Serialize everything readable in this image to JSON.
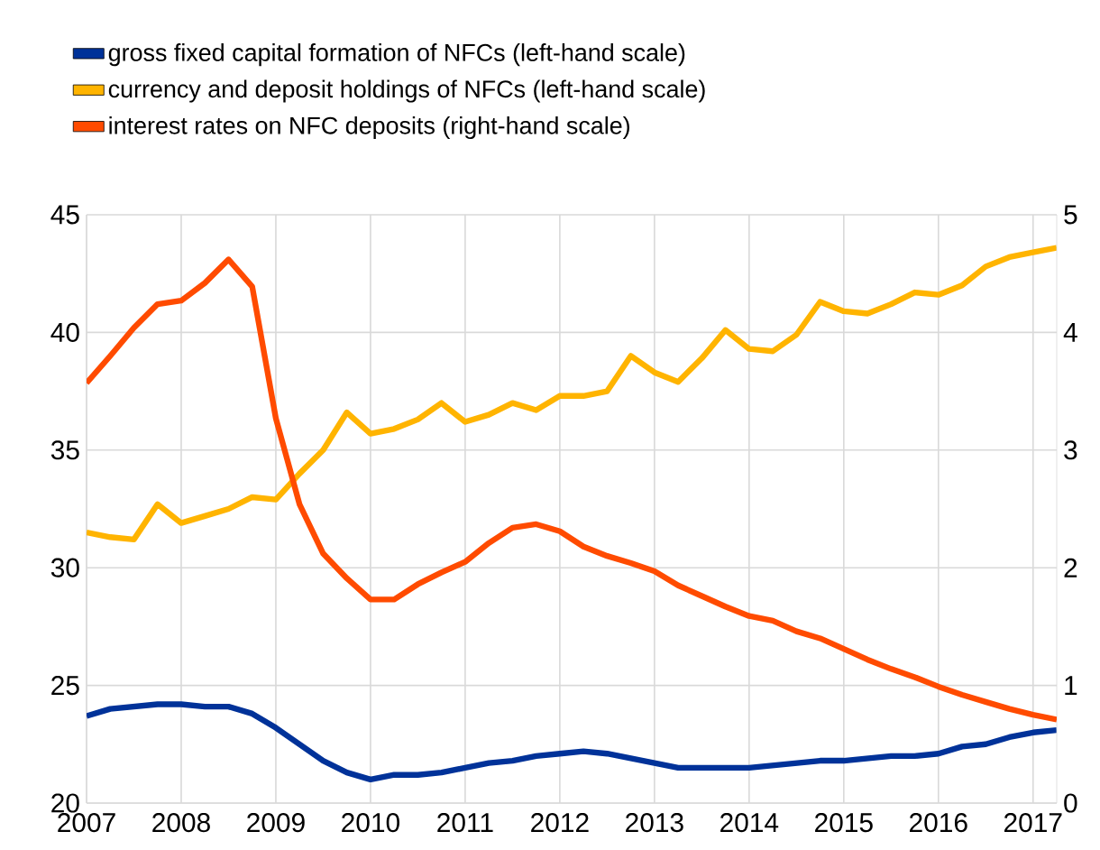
{
  "chart_data": {
    "type": "line",
    "x": [
      2007.0,
      2007.25,
      2007.5,
      2007.75,
      2008.0,
      2008.25,
      2008.5,
      2008.75,
      2009.0,
      2009.25,
      2009.5,
      2009.75,
      2010.0,
      2010.25,
      2010.5,
      2010.75,
      2011.0,
      2011.25,
      2011.5,
      2011.75,
      2012.0,
      2012.25,
      2012.5,
      2012.75,
      2013.0,
      2013.25,
      2013.5,
      2013.75,
      2014.0,
      2014.25,
      2014.5,
      2014.75,
      2015.0,
      2015.25,
      2015.5,
      2015.75,
      2016.0,
      2016.25,
      2016.5,
      2016.75,
      2017.0,
      2017.25
    ],
    "series": [
      {
        "name": "gross fixed capital formation of NFCs (left-hand scale)",
        "color": "#003299",
        "values": [
          23.7,
          24.0,
          24.1,
          24.2,
          24.2,
          24.1,
          24.1,
          23.8,
          23.2,
          22.5,
          21.8,
          21.3,
          21.0,
          21.2,
          21.2,
          21.3,
          21.5,
          21.7,
          21.8,
          22.0,
          22.1,
          22.2,
          22.1,
          21.9,
          21.7,
          21.5,
          21.5,
          21.5,
          21.5,
          21.6,
          21.7,
          21.8,
          21.8,
          21.9,
          22.0,
          22.0,
          22.1,
          22.4,
          22.5,
          22.8,
          23.0,
          23.1
        ]
      },
      {
        "name": "currency and deposit holdings of NFCs (left-hand scale)",
        "color": "#ffb400",
        "values": [
          31.5,
          31.3,
          31.2,
          32.7,
          31.9,
          32.2,
          32.5,
          33.0,
          32.9,
          34.0,
          35.0,
          36.6,
          35.7,
          35.9,
          36.3,
          37.0,
          36.2,
          36.5,
          37.0,
          36.7,
          37.3,
          37.3,
          37.5,
          39.0,
          38.3,
          37.9,
          38.9,
          40.1,
          39.3,
          39.2,
          39.9,
          41.3,
          40.9,
          40.8,
          41.2,
          41.7,
          41.6,
          42.0,
          42.8,
          43.2,
          43.4,
          43.6
        ]
      },
      {
        "name": "interest rates on NFC deposits (right-hand scale)",
        "color": "#ff4b00",
        "axis": "y2",
        "values": [
          3.57,
          3.8,
          4.04,
          4.24,
          4.27,
          4.42,
          4.62,
          4.39,
          3.27,
          2.54,
          2.12,
          1.91,
          1.73,
          1.73,
          1.86,
          1.96,
          2.05,
          2.21,
          2.34,
          2.37,
          2.31,
          2.18,
          2.1,
          2.04,
          1.97,
          1.85,
          1.76,
          1.67,
          1.59,
          1.55,
          1.46,
          1.4,
          1.31,
          1.22,
          1.14,
          1.07,
          0.99,
          0.92,
          0.86,
          0.8,
          0.75,
          0.71
        ]
      }
    ],
    "xlim": [
      2007,
      2017.25
    ],
    "xticks": [
      2007,
      2008,
      2009,
      2010,
      2011,
      2012,
      2013,
      2014,
      2015,
      2016,
      2017
    ],
    "ylim": [
      20,
      45
    ],
    "yticks": [
      20,
      25,
      30,
      35,
      40,
      45
    ],
    "y2lim": [
      0,
      5
    ],
    "y2ticks": [
      0,
      1,
      2,
      3,
      4,
      5
    ],
    "grid": true,
    "legend": "top left",
    "line_style": "solid",
    "marker": "none"
  }
}
